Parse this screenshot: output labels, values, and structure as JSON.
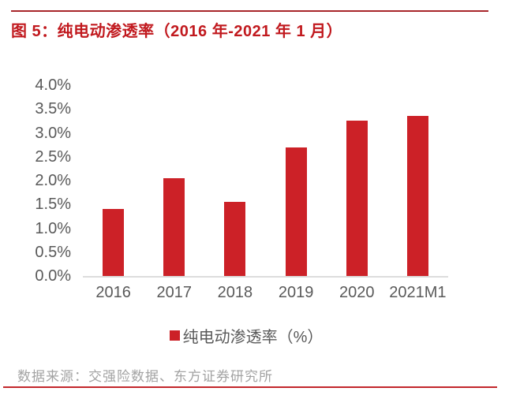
{
  "title": "图 5：纯电动渗透率（2016 年-2021 年 1 月）",
  "source": "数据来源：交强险数据、东方证券研究所",
  "colors": {
    "bar": "#CC2127",
    "title_text": "#C1191E",
    "top_rule": "#A8262B",
    "bottom_rule": "#C2272B",
    "axis_line": "#DCDCDC",
    "tick_text": "#595959",
    "source_text": "#A3A3A3"
  },
  "chart_data": {
    "type": "bar",
    "title": "纯电动渗透率（2016 年-2021 年 1 月）",
    "categories": [
      "2016",
      "2017",
      "2018",
      "2019",
      "2020",
      "2021M1"
    ],
    "values": [
      1.4,
      2.05,
      1.55,
      2.7,
      3.25,
      3.35
    ],
    "unit": "%",
    "xlabel": "",
    "ylabel": "",
    "ylim": [
      0,
      4
    ],
    "ytick_step": 0.5,
    "ytick_labels": [
      "4.0%",
      "3.5%",
      "3.0%",
      "2.5%",
      "2.0%",
      "1.5%",
      "1.0%",
      "0.5%",
      "0.0%"
    ],
    "grid": false,
    "legend": [
      "纯电动渗透率（%）"
    ],
    "legend_position": "bottom"
  }
}
